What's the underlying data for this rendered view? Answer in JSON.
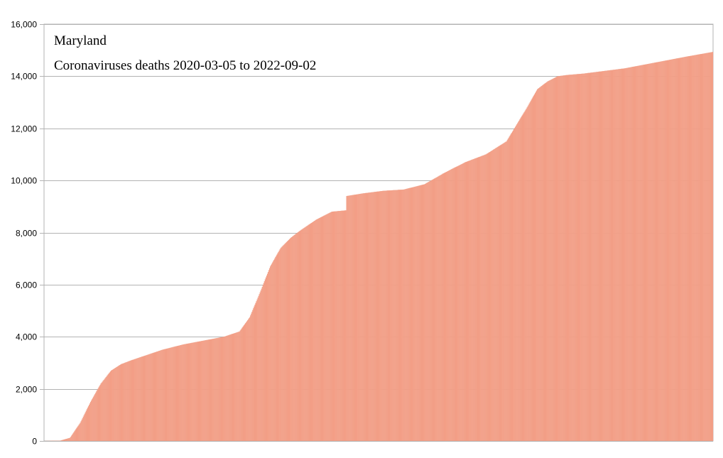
{
  "chart_data": {
    "type": "bar",
    "title": "Maryland",
    "subtitle": "Coronaviruses deaths 2020-03-05 to 2022-09-02",
    "xlabel": "",
    "ylabel": "",
    "ylim": [
      0,
      16000
    ],
    "yticks": [
      0,
      2000,
      4000,
      6000,
      8000,
      10000,
      12000,
      14000,
      16000
    ],
    "ytick_labels": [
      "0",
      "2,000",
      "4,000",
      "6,000",
      "8,000",
      "10,000",
      "12,000",
      "14,000",
      "16,000"
    ],
    "x_start": "2020-03-05",
    "x_end": "2022-09-02",
    "grid": true,
    "legend": "none",
    "bar_color": "#f4a088",
    "bar_edge_color": "#ec9a80",
    "x": [
      "2020-03-05",
      "2020-03-26",
      "2020-04-09",
      "2020-04-23",
      "2020-05-07",
      "2020-05-21",
      "2020-06-04",
      "2020-06-18",
      "2020-07-02",
      "2020-07-23",
      "2020-08-13",
      "2020-09-10",
      "2020-10-08",
      "2020-11-05",
      "2020-11-26",
      "2020-12-10",
      "2020-12-24",
      "2021-01-07",
      "2021-01-21",
      "2021-02-04",
      "2021-02-18",
      "2021-03-11",
      "2021-04-01",
      "2021-04-20",
      "2021-04-21",
      "2021-05-13",
      "2021-06-10",
      "2021-07-08",
      "2021-08-05",
      "2021-09-02",
      "2021-09-30",
      "2021-10-28",
      "2021-11-25",
      "2021-12-23",
      "2022-01-06",
      "2022-01-20",
      "2022-02-03",
      "2022-02-17",
      "2022-03-10",
      "2022-04-07",
      "2022-05-05",
      "2022-06-02",
      "2022-06-30",
      "2022-07-28",
      "2022-09-02"
    ],
    "values": [
      0,
      5,
      120,
      700,
      1500,
      2200,
      2700,
      2950,
      3100,
      3300,
      3500,
      3700,
      3850,
      4000,
      4200,
      4750,
      5700,
      6700,
      7400,
      7800,
      8100,
      8500,
      8800,
      8850,
      9400,
      9500,
      9600,
      9650,
      9850,
      10300,
      10700,
      11000,
      11500,
      12800,
      13500,
      13800,
      14000,
      14050,
      14100,
      14200,
      14300,
      14450,
      14600,
      14750,
      14930
    ]
  }
}
